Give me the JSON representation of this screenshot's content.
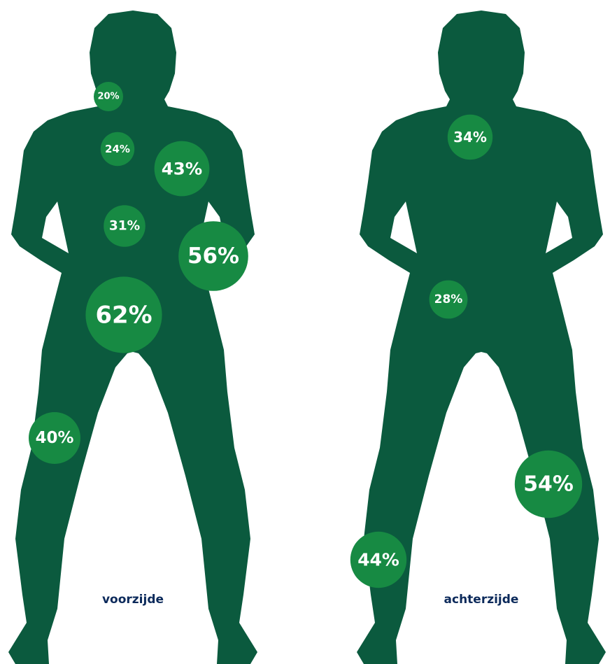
{
  "figures": [
    {
      "label": "voorzijde",
      "values": [
        20,
        24,
        43,
        31,
        56,
        62,
        40
      ],
      "value_labels": [
        "20%",
        "24%",
        "43%",
        "31%",
        "56%",
        "62%",
        "40%"
      ]
    },
    {
      "label": "achterzijde",
      "values": [
        34,
        28,
        54,
        44
      ],
      "value_labels": [
        "34%",
        "28%",
        "54%",
        "44%"
      ]
    }
  ]
}
